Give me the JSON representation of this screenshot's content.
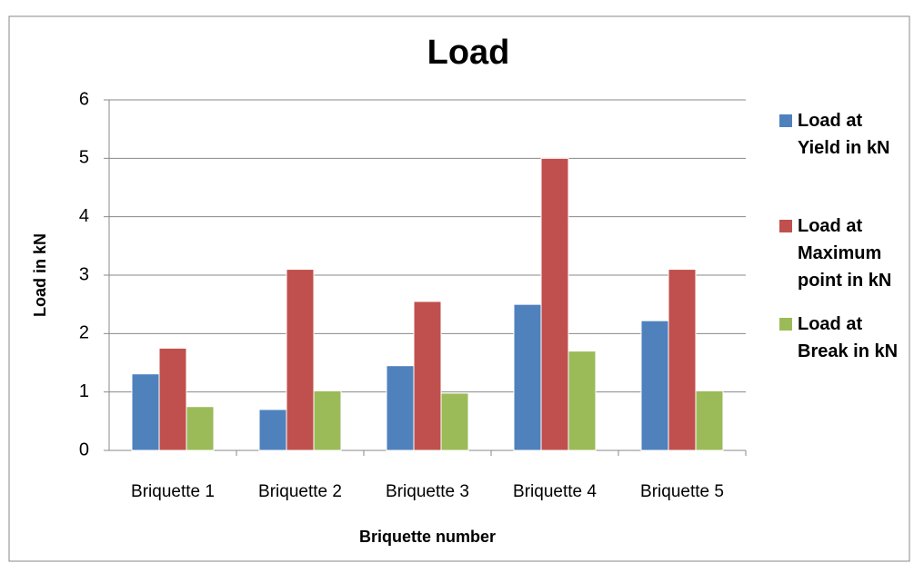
{
  "chart_data": {
    "type": "bar",
    "title": "Load",
    "x_label": "Briquette number",
    "y_label": "Load in kN",
    "categories": [
      "Briquette 1",
      "Briquette 2",
      "Briquette 3",
      "Briquette 4",
      "Briquette 5"
    ],
    "series": [
      {
        "name": "Load at Yield in kN",
        "color": "#4f81bd",
        "values": [
          1.31,
          0.7,
          1.45,
          2.5,
          2.22
        ]
      },
      {
        "name": "Load at Maximum point in kN",
        "color": "#c0504d",
        "values": [
          1.75,
          3.1,
          2.55,
          5.0,
          3.1
        ]
      },
      {
        "name": "Load at Break in kN",
        "color": "#9bbb59",
        "values": [
          0.75,
          1.02,
          0.98,
          1.7,
          1.02
        ]
      }
    ],
    "ylim": [
      0,
      6
    ],
    "yticks": [
      0,
      1,
      2,
      3,
      4,
      5,
      6
    ],
    "grid": true,
    "legend": "right"
  }
}
